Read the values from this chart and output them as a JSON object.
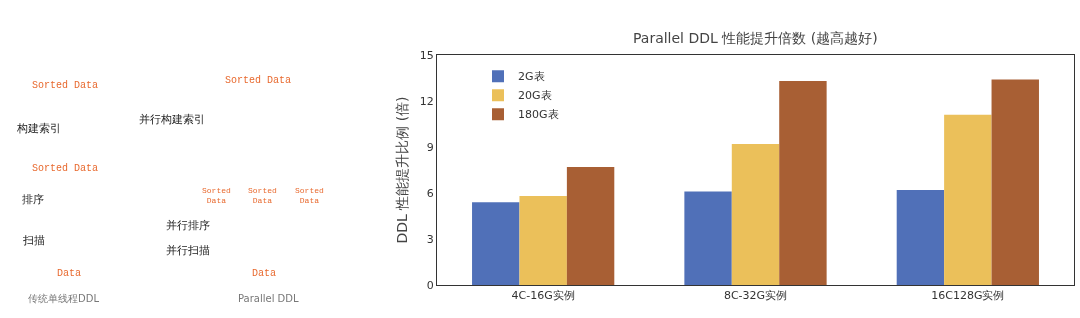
{
  "chart_data": [
    {
      "type": "other",
      "annotations": [
        "Sorted Data",
        "Sorted Data",
        "构建索引",
        "并行构建索引",
        "Sorted Data",
        "Sorted Data",
        "Sorted Data",
        "Sorted Data",
        "排序",
        "并行排序",
        "扫描",
        "并行扫描",
        "Data",
        "Data",
        "传统单线程DDL",
        "Parallel DDL"
      ]
    },
    {
      "type": "bar",
      "title": "Parallel DDL 性能提升倍数 (越高越好)",
      "ylabel": "DDL 性能提升比例 (倍)",
      "categories": [
        "4C-16G实例",
        "8C-32G实例",
        "16C128G实例"
      ],
      "series": [
        {
          "name": "2G表",
          "color": "#5070b8",
          "values": [
            5.4,
            6.1,
            6.2
          ]
        },
        {
          "name": "20G表",
          "color": "#ebc05a",
          "values": [
            5.8,
            9.2,
            11.1
          ]
        },
        {
          "name": "180G表",
          "color": "#a85f34",
          "values": [
            7.7,
            13.3,
            13.4
          ]
        }
      ],
      "ylim": [
        0,
        15
      ],
      "yticks": [
        0,
        3,
        6,
        9,
        12,
        15
      ],
      "legend": "top left"
    }
  ]
}
